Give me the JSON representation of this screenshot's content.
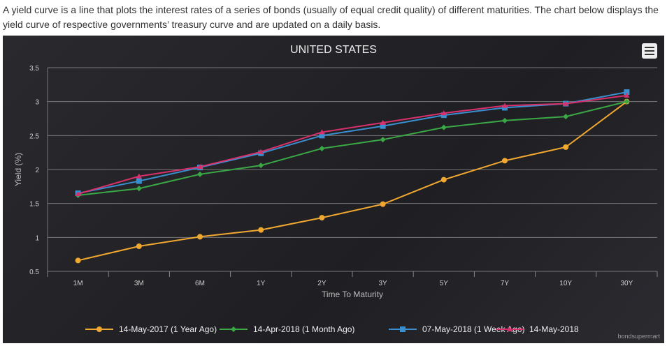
{
  "intro": "A yield curve is a line that plots the interest rates of a series of bonds (usually of equal credit quality) of different maturities. The chart below displays the yield curve of respective governments’ treasury curve and are updated on a daily basis.",
  "credit": "bondsupermart",
  "chart_data": {
    "type": "line",
    "title": "UNITED STATES",
    "xlabel": "Time To Maturity",
    "ylabel": "Yield (%)",
    "ylim": [
      0.5,
      3.5
    ],
    "yticks": [
      "0.5",
      "1",
      "1.5",
      "2",
      "2.5",
      "3",
      "3.5"
    ],
    "categories": [
      "1M",
      "3M",
      "6M",
      "1Y",
      "2Y",
      "3Y",
      "5Y",
      "7Y",
      "10Y",
      "30Y"
    ],
    "legend_position": "bottom",
    "series": [
      {
        "name": "14-May-2017 (1 Year Ago)",
        "color": "#f0a830",
        "marker": "circle",
        "values": [
          0.66,
          0.87,
          1.01,
          1.11,
          1.29,
          1.49,
          1.85,
          2.13,
          2.33,
          3.0
        ]
      },
      {
        "name": "14-Apr-2018 (1 Month Ago)",
        "color": "#3aa845",
        "marker": "diamond",
        "values": [
          1.62,
          1.72,
          1.93,
          2.06,
          2.31,
          2.44,
          2.62,
          2.72,
          2.78,
          3.0
        ]
      },
      {
        "name": "07-May-2018 (1 Week Ago)",
        "color": "#3a8fd0",
        "marker": "square",
        "values": [
          1.65,
          1.83,
          2.03,
          2.24,
          2.5,
          2.64,
          2.8,
          2.91,
          2.97,
          3.14
        ]
      },
      {
        "name": "14-May-2018",
        "color": "#d8306a",
        "marker": "triangle",
        "values": [
          1.64,
          1.9,
          2.04,
          2.26,
          2.55,
          2.69,
          2.83,
          2.94,
          2.97,
          3.09
        ]
      }
    ]
  }
}
